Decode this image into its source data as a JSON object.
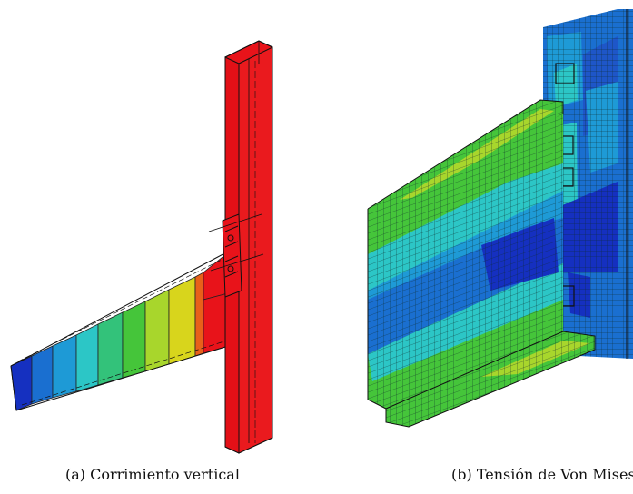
{
  "figures": [
    {
      "caption": "(a) Corrimiento vertical",
      "content": "beam-column connection, vertical displacement contour"
    },
    {
      "caption": "(b) Tensión de Von Mises",
      "content": "connection detail, Von Mises stress contour with mesh"
    }
  ],
  "colors": {
    "red": "#e8131a",
    "orange": "#e8601a",
    "yellow": "#d8d51c",
    "yellow_green": "#a8d62c",
    "green": "#45c53a",
    "green2": "#33c27a",
    "cyan": "#2cc6c6",
    "light_blue": "#1e9ad6",
    "blue": "#1a6fd0",
    "dark_blue": "#1530c0",
    "mid_blue": "#1e56c8",
    "outline": "#111111"
  }
}
